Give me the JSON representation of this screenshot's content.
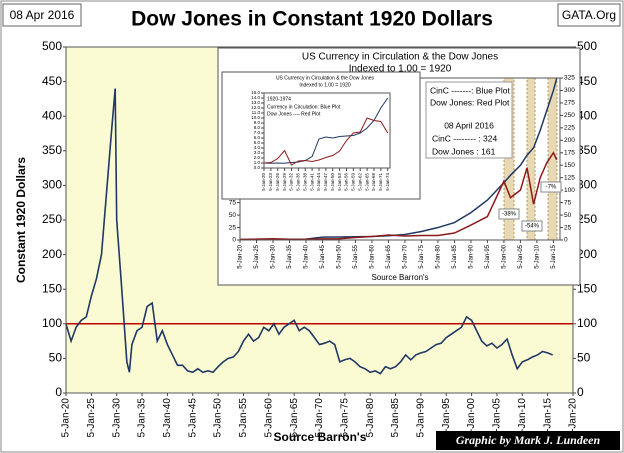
{
  "chart_data": [
    {
      "type": "line",
      "title": "Dow Jones in Constant 1920 Dollars",
      "date": "08 Apr 2016",
      "site": "GATA.Org",
      "credit": "Graphic by Mark J. Lundeen",
      "ylabel": "Constant  1920  Dollars",
      "xlabel": "Source Barron's",
      "color": "#1f3864",
      "hline": 100,
      "hline_color": "#c00000",
      "xlim": [
        1920,
        2020
      ],
      "ylim": [
        0,
        500
      ],
      "y2lim": [
        0,
        500
      ],
      "xticks": [
        {
          "value": 1920,
          "label": "5-Jan-20"
        },
        {
          "value": 1925,
          "label": "5-Jan-25"
        },
        {
          "value": 1930,
          "label": "5-Jan-30"
        },
        {
          "value": 1935,
          "label": "5-Jan-35"
        },
        {
          "value": 1940,
          "label": "5-Jan-40"
        },
        {
          "value": 1945,
          "label": "5-Jan-45"
        },
        {
          "value": 1950,
          "label": "5-Jan-50"
        },
        {
          "value": 1955,
          "label": "5-Jan-55"
        },
        {
          "value": 1960,
          "label": "5-Jan-60"
        },
        {
          "value": 1965,
          "label": "5-Jan-65"
        },
        {
          "value": 1970,
          "label": "5-Jan-70"
        },
        {
          "value": 1975,
          "label": "5-Jan-75"
        },
        {
          "value": 1980,
          "label": "5-Jan-80"
        },
        {
          "value": 1985,
          "label": "5-Jan-85"
        },
        {
          "value": 1990,
          "label": "5-Jan-90"
        },
        {
          "value": 1995,
          "label": "5-Jan-95"
        },
        {
          "value": 2000,
          "label": "5-Jan-00"
        },
        {
          "value": 2005,
          "label": "5-Jan-05"
        },
        {
          "value": 2010,
          "label": "5-Jan-10"
        },
        {
          "value": 2015,
          "label": "5-Jan-15"
        },
        {
          "value": 2020,
          "label": "5-Jan-20"
        }
      ],
      "yticks": [
        0,
        50,
        100,
        150,
        200,
        250,
        300,
        350,
        400,
        450,
        500
      ],
      "y2ticks": [
        0,
        50,
        100,
        150,
        200,
        250,
        300,
        350,
        400,
        450,
        500
      ],
      "x": [
        1920,
        1921,
        1922,
        1923,
        1924,
        1925,
        1926,
        1927,
        1928,
        1929,
        1929.7,
        1930,
        1931,
        1932,
        1932.5,
        1933,
        1934,
        1935,
        1936,
        1937,
        1938,
        1939,
        1940,
        1941,
        1942,
        1943,
        1944,
        1945,
        1946,
        1947,
        1948,
        1949,
        1950,
        1951,
        1952,
        1953,
        1954,
        1955,
        1956,
        1957,
        1958,
        1959,
        1960,
        1961,
        1962,
        1963,
        1964,
        1965,
        1966,
        1967,
        1968,
        1969,
        1970,
        1971,
        1972,
        1973,
        1974,
        1975,
        1976,
        1977,
        1978,
        1979,
        1980,
        1981,
        1982,
        1983,
        1984,
        1985,
        1986,
        1987,
        1988,
        1989,
        1990,
        1991,
        1992,
        1993,
        1994,
        1995,
        1996,
        1997,
        1998,
        1999,
        2000,
        2001,
        2002,
        2003,
        2004,
        2005,
        2006,
        2007,
        2008,
        2009,
        2010,
        2011,
        2012,
        2013,
        2014,
        2015,
        2016
      ],
      "values": [
        100,
        75,
        95,
        105,
        110,
        140,
        165,
        200,
        290,
        380,
        440,
        250,
        150,
        45,
        30,
        70,
        90,
        95,
        125,
        130,
        75,
        90,
        70,
        55,
        40,
        40,
        32,
        30,
        35,
        30,
        32,
        30,
        38,
        45,
        50,
        52,
        60,
        75,
        85,
        75,
        80,
        95,
        90,
        100,
        85,
        95,
        100,
        105,
        90,
        95,
        90,
        80,
        70,
        72,
        75,
        70,
        45,
        48,
        50,
        45,
        38,
        35,
        30,
        32,
        28,
        38,
        35,
        38,
        45,
        55,
        48,
        55,
        58,
        60,
        65,
        70,
        72,
        80,
        85,
        90,
        95,
        110,
        105,
        90,
        75,
        68,
        72,
        65,
        70,
        78,
        55,
        35,
        45,
        48,
        52,
        55,
        60,
        58,
        55
      ]
    },
    {
      "type": "line",
      "title": "US Currency in Circulation & the Dow Jones",
      "subtitle": "Indexed to 1.00 = 1920",
      "xlabel": "Source Barron's",
      "annotations": [
        "CinC -------: Blue Plot",
        "Dow Jones: Red Plot",
        "08 April 2016",
        "CinC -------- : 324",
        "Dow Jones : 161",
        "-38%",
        "-54%",
        "-7%"
      ],
      "xlim": [
        1920,
        2017
      ],
      "ylim": [
        0,
        325
      ],
      "y2lim": [
        0,
        325
      ],
      "xticks": [
        {
          "value": 1920,
          "label": "5-Jan-20"
        },
        {
          "value": 1925,
          "label": "5-Jan-25"
        },
        {
          "value": 1930,
          "label": "5-Jan-30"
        },
        {
          "value": 1935,
          "label": "5-Jan-35"
        },
        {
          "value": 1940,
          "label": "5-Jan-40"
        },
        {
          "value": 1945,
          "label": "5-Jan-45"
        },
        {
          "value": 1950,
          "label": "5-Jan-50"
        },
        {
          "value": 1955,
          "label": "5-Jan-55"
        },
        {
          "value": 1960,
          "label": "5-Jan-60"
        },
        {
          "value": 1965,
          "label": "5-Jan-65"
        },
        {
          "value": 1970,
          "label": "5-Jan-70"
        },
        {
          "value": 1975,
          "label": "5-Jan-75"
        },
        {
          "value": 1980,
          "label": "5-Jan-80"
        },
        {
          "value": 1985,
          "label": "5-Jan-85"
        },
        {
          "value": 1990,
          "label": "5-Jan-90"
        },
        {
          "value": 1995,
          "label": "5-Jan-95"
        },
        {
          "value": 2000,
          "label": "5-Jan-00"
        },
        {
          "value": 2005,
          "label": "5-Jan-05"
        },
        {
          "value": 2010,
          "label": "5-Jan-10"
        },
        {
          "value": 2015,
          "label": "5-Jan-15"
        }
      ],
      "yticks": [
        0,
        25,
        50,
        75,
        100,
        125,
        150,
        175,
        200,
        225,
        250,
        275,
        300,
        325
      ],
      "y2ticks": [
        0,
        25,
        50,
        75,
        100,
        125,
        150,
        175,
        200,
        225,
        250,
        275,
        300,
        325
      ],
      "x": [
        1920,
        1925,
        1930,
        1935,
        1940,
        1945,
        1950,
        1955,
        1960,
        1965,
        1970,
        1975,
        1980,
        1985,
        1990,
        1995,
        2000,
        2002,
        2005,
        2007,
        2009,
        2011,
        2013,
        2015,
        2016
      ],
      "series": [
        {
          "color": "#1f3864",
          "values": [
            1,
            1,
            0.9,
            1.2,
            1.8,
            5.8,
            6,
            6.5,
            7,
            8.5,
            11,
            17,
            25,
            35,
            55,
            80,
            115,
            130,
            150,
            170,
            185,
            220,
            260,
            300,
            324
          ]
        },
        {
          "color": "#8b1a1a",
          "values": [
            1,
            1.7,
            2.5,
            1.5,
            1.6,
            2.3,
            2.5,
            5,
            7,
            10,
            8,
            9,
            9,
            14,
            30,
            47,
            118,
            85,
            100,
            145,
            72,
            125,
            155,
            175,
            161
          ]
        }
      ]
    },
    {
      "type": "line",
      "title": "US Currency in Circulation & the Dow Jones",
      "subtitle": "Indexed to 1.00 = 1920",
      "annotations": [
        "1920-1974",
        "Currency in Circulation: Blue Plot",
        "Dow Jones ---- Red Plot"
      ],
      "xlim": [
        1920,
        1975
      ],
      "ylim": [
        0,
        15
      ],
      "xticks": [
        {
          "value": 1920,
          "label": "5-Jan-20"
        },
        {
          "value": 1923,
          "label": "5-Jan-23"
        },
        {
          "value": 1926,
          "label": "5-Jan-26"
        },
        {
          "value": 1929,
          "label": "5-Jan-29"
        },
        {
          "value": 1932,
          "label": "5-Jan-32"
        },
        {
          "value": 1935,
          "label": "5-Jan-35"
        },
        {
          "value": 1938,
          "label": "5-Jan-38"
        },
        {
          "value": 1941,
          "label": "5-Jan-41"
        },
        {
          "value": 1944,
          "label": "5-Jan-44"
        },
        {
          "value": 1947,
          "label": "5-Jan-47"
        },
        {
          "value": 1950,
          "label": "5-Jan-50"
        },
        {
          "value": 1953,
          "label": "5-Jan-53"
        },
        {
          "value": 1956,
          "label": "5-Jan-56"
        },
        {
          "value": 1959,
          "label": "5-Jan-59"
        },
        {
          "value": 1962,
          "label": "5-Jan-62"
        },
        {
          "value": 1965,
          "label": "5-Jan-65"
        },
        {
          "value": 1968,
          "label": "5-Jan-68"
        },
        {
          "value": 1971,
          "label": "5-Jan-71"
        },
        {
          "value": 1974,
          "label": "5-Jan-74"
        }
      ],
      "yticks": [
        {
          "value": 0,
          "label": "0.0"
        },
        {
          "value": 1,
          "label": "1.0"
        },
        {
          "value": 2,
          "label": "2.0"
        },
        {
          "value": 3,
          "label": "3.0"
        },
        {
          "value": 4,
          "label": "4.0"
        },
        {
          "value": 5,
          "label": "5.0"
        },
        {
          "value": 6,
          "label": "6.0"
        },
        {
          "value": 7,
          "label": "7.0"
        },
        {
          "value": 8,
          "label": "8.0"
        },
        {
          "value": 9,
          "label": "9.0"
        },
        {
          "value": 10,
          "label": "10.0"
        },
        {
          "value": 11,
          "label": "11.0"
        },
        {
          "value": 12,
          "label": "12.0"
        },
        {
          "value": 13,
          "label": "13.0"
        },
        {
          "value": 14,
          "label": "14.0"
        },
        {
          "value": 15,
          "label": "15.0"
        }
      ],
      "x": [
        1920,
        1923,
        1926,
        1929,
        1932,
        1935,
        1938,
        1941,
        1944,
        1947,
        1950,
        1953,
        1956,
        1959,
        1962,
        1965,
        1968,
        1971,
        1974
      ],
      "series": [
        {
          "color": "#1f3864",
          "values": [
            1,
            0.95,
            1,
            0.95,
            1.1,
            1.2,
            1.5,
            2.3,
            5.8,
            6.2,
            6,
            6.3,
            6.4,
            6.5,
            7,
            8,
            9.5,
            12,
            14
          ]
        },
        {
          "color": "#8b1a1a",
          "values": [
            1,
            1.1,
            1.9,
            3.5,
            0.6,
            1.4,
            1.5,
            1.3,
            1.6,
            2.1,
            2.5,
            3.4,
            5.5,
            7,
            7.2,
            10,
            9.5,
            9.3,
            7
          ]
        }
      ]
    }
  ]
}
